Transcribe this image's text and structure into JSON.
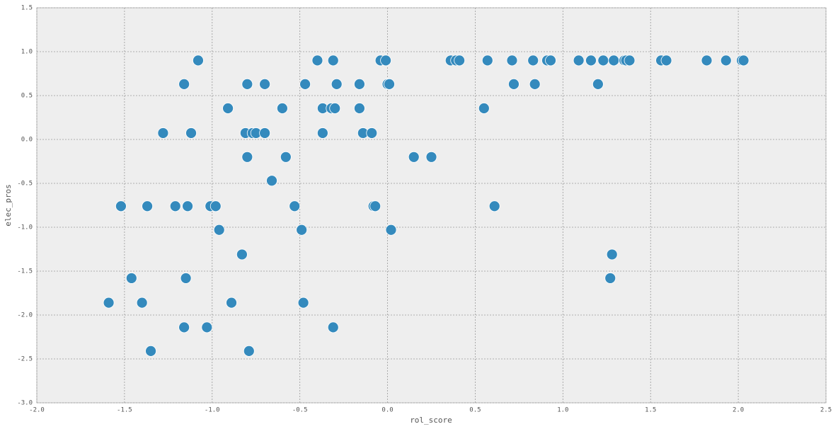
{
  "chart_data": {
    "type": "scatter",
    "x_label": "rol_score",
    "y_label": "elec_pros",
    "color": "#348abd",
    "grid": true,
    "xlim": [
      -2.0,
      2.5
    ],
    "xticks": [
      {
        "value": -2.0,
        "label": "-2.0"
      },
      -1.5,
      {
        "value": -1.0,
        "label": "-1.0"
      },
      -0.5,
      {
        "value": 0.0,
        "label": "0.0"
      },
      0.5,
      {
        "value": 1.0,
        "label": "1.0"
      },
      1.5,
      {
        "value": 2.0,
        "label": "2.0"
      },
      2.5
    ],
    "ylim": [
      -3.0,
      1.5
    ],
    "yticks": [
      {
        "value": -3.0,
        "label": "-3.0"
      },
      -2.5,
      {
        "value": -2.0,
        "label": "-2.0"
      },
      -1.5,
      {
        "value": -1.0,
        "label": "-1.0"
      },
      -0.5,
      {
        "value": 0.0,
        "label": "0.0"
      },
      0.5,
      {
        "value": 1.0,
        "label": "1.0"
      },
      1.5
    ],
    "x": [
      -1.08,
      -0.4,
      -0.31,
      -0.04,
      -0.01,
      0.36,
      0.39,
      0.41,
      0.57,
      0.71,
      0.83,
      0.91,
      0.93,
      1.09,
      1.16,
      1.23,
      1.29,
      1.35,
      1.36,
      1.38,
      1.56,
      1.59,
      1.82,
      1.93,
      2.02,
      2.03,
      -1.16,
      -0.8,
      -0.7,
      -0.47,
      -0.29,
      -0.16,
      0.0,
      0.01,
      0.72,
      0.84,
      1.2,
      -0.91,
      -0.6,
      -0.37,
      -0.32,
      -0.3,
      -0.16,
      0.55,
      -1.28,
      -1.12,
      -0.81,
      -0.77,
      -0.75,
      -0.7,
      -0.37,
      -0.14,
      -0.09,
      -0.8,
      -0.58,
      0.15,
      0.25,
      -0.66,
      -1.52,
      -1.37,
      -1.21,
      -1.14,
      -1.01,
      -0.98,
      -0.53,
      -0.08,
      -0.07,
      0.61,
      -0.96,
      -0.49,
      0.02,
      -0.83,
      1.28,
      -1.46,
      -1.15,
      1.27,
      -1.59,
      -1.4,
      -0.89,
      -0.48,
      -1.16,
      -1.03,
      -0.31,
      -1.35,
      -0.79
    ],
    "y": [
      0.9,
      0.9,
      0.9,
      0.9,
      0.9,
      0.9,
      0.9,
      0.9,
      0.9,
      0.9,
      0.9,
      0.9,
      0.9,
      0.9,
      0.9,
      0.9,
      0.9,
      0.9,
      0.9,
      0.9,
      0.9,
      0.9,
      0.9,
      0.9,
      0.9,
      0.9,
      0.63,
      0.63,
      0.63,
      0.63,
      0.63,
      0.63,
      0.63,
      0.63,
      0.63,
      0.63,
      0.63,
      0.355,
      0.355,
      0.355,
      0.355,
      0.355,
      0.355,
      0.355,
      0.073,
      0.073,
      0.073,
      0.073,
      0.073,
      0.073,
      0.073,
      0.073,
      0.073,
      -0.2,
      -0.2,
      -0.2,
      -0.2,
      -0.47,
      -0.76,
      -0.76,
      -0.76,
      -0.76,
      -0.76,
      -0.76,
      -0.76,
      -0.76,
      -0.76,
      -0.76,
      -1.03,
      -1.03,
      -1.03,
      -1.31,
      -1.31,
      -1.58,
      -1.58,
      -1.58,
      -1.86,
      -1.86,
      -1.86,
      -1.86,
      -2.14,
      -2.14,
      -2.14,
      -2.41,
      -2.41
    ]
  }
}
